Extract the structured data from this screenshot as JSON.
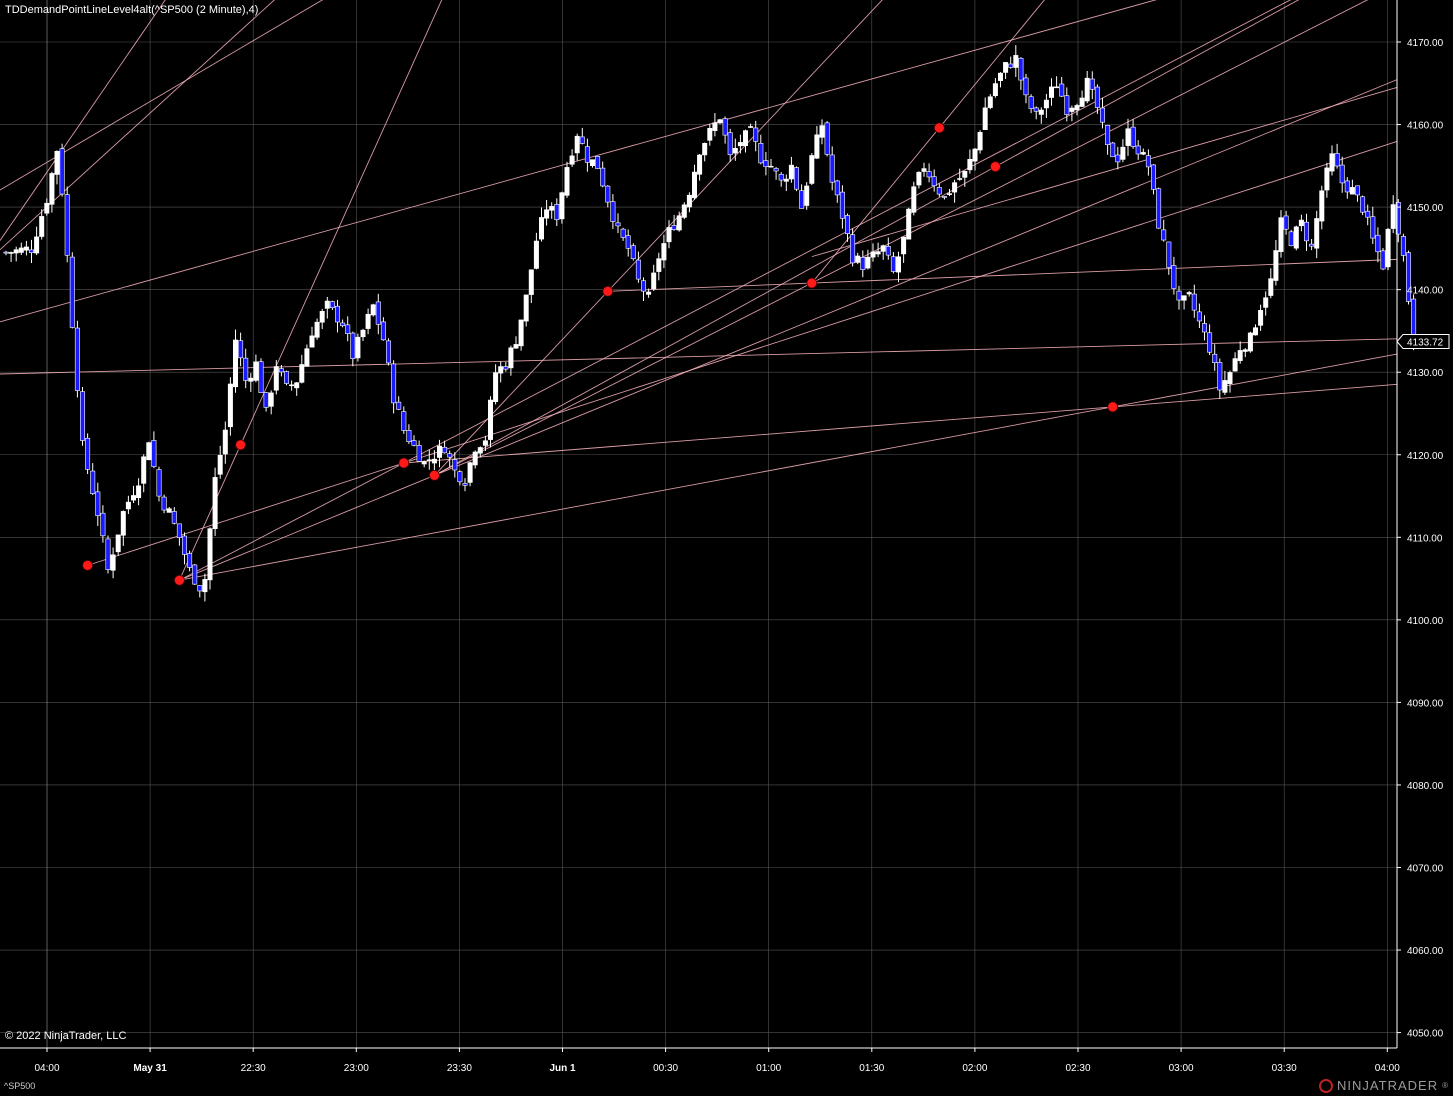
{
  "window": {
    "title": "TDDemandPointLineLevel4alt(^SP500 (2 Minute),4)",
    "copyright": "© 2022 NinjaTrader, LLC",
    "symbol": "^SP500",
    "brand": "NINJATRADER",
    "brand_mark": "®"
  },
  "colors": {
    "background": "#000000",
    "grid": "#555555",
    "candle_up": "#ffffff",
    "candle_down": "#1a1aff",
    "wick": "#ffffff",
    "trendline": "#ffb6c1",
    "demand_point": "#ff1a1a",
    "price_marker": "#ffffff"
  },
  "chart_data": {
    "type": "candlestick",
    "title": "TDDemandPointLineLevel4alt(^SP500 (2 Minute),4)",
    "ylim": [
      4047,
      4175
    ],
    "y_ticks": [
      "4050.00",
      "4060.00",
      "4070.00",
      "4080.00",
      "4090.00",
      "4100.00",
      "4110.00",
      "4120.00",
      "4130.00",
      "4140.00",
      "4150.00",
      "4160.00",
      "4170.00"
    ],
    "y_tick_values": [
      4050,
      4060,
      4070,
      4080,
      4090,
      4100,
      4110,
      4120,
      4130,
      4140,
      4150,
      4160,
      4170
    ],
    "x_ticks": [
      "04:00",
      "May 31",
      "22:30",
      "23:00",
      "23:30",
      "Jun 1",
      "00:30",
      "01:00",
      "01:30",
      "02:00",
      "02:30",
      "03:00",
      "03:30",
      "04:00"
    ],
    "bold_ticks": [
      "May 31",
      "Jun 1"
    ],
    "last_price": "4133.72",
    "last_price_value": 4133.72,
    "bar_count": 270,
    "close_path": [
      [
        0,
        4144.5
      ],
      [
        5,
        4145
      ],
      [
        8,
        4151
      ],
      [
        10,
        4157
      ],
      [
        11,
        4152
      ],
      [
        13,
        4136
      ],
      [
        15,
        4121
      ],
      [
        18,
        4113
      ],
      [
        20,
        4106
      ],
      [
        23,
        4113
      ],
      [
        26,
        4117
      ],
      [
        28,
        4122
      ],
      [
        30,
        4115
      ],
      [
        32,
        4113
      ],
      [
        34,
        4110
      ],
      [
        36,
        4106
      ],
      [
        38,
        4104
      ],
      [
        39,
        4105
      ],
      [
        41,
        4117
      ],
      [
        43,
        4123
      ],
      [
        45,
        4134
      ],
      [
        47,
        4129
      ],
      [
        49,
        4131
      ],
      [
        51,
        4125
      ],
      [
        53,
        4131
      ],
      [
        55,
        4128
      ],
      [
        57,
        4129
      ],
      [
        60,
        4135
      ],
      [
        63,
        4138
      ],
      [
        66,
        4136
      ],
      [
        68,
        4132
      ],
      [
        70,
        4135
      ],
      [
        72,
        4138
      ],
      [
        74,
        4134
      ],
      [
        76,
        4127
      ],
      [
        78,
        4123
      ],
      [
        80,
        4121
      ],
      [
        82,
        4119
      ],
      [
        84,
        4120
      ],
      [
        86,
        4121
      ],
      [
        88,
        4118
      ],
      [
        90,
        4117
      ],
      [
        92,
        4121
      ],
      [
        94,
        4122
      ],
      [
        96,
        4130
      ],
      [
        98,
        4131
      ],
      [
        100,
        4134
      ],
      [
        102,
        4139
      ],
      [
        104,
        4146
      ],
      [
        106,
        4150
      ],
      [
        108,
        4149
      ],
      [
        110,
        4155
      ],
      [
        112,
        4159
      ],
      [
        114,
        4156
      ],
      [
        116,
        4155
      ],
      [
        118,
        4151
      ],
      [
        120,
        4147
      ],
      [
        122,
        4145
      ],
      [
        124,
        4141
      ],
      [
        126,
        4139
      ],
      [
        128,
        4144
      ],
      [
        130,
        4147
      ],
      [
        132,
        4149
      ],
      [
        134,
        4152
      ],
      [
        136,
        4157
      ],
      [
        138,
        4159
      ],
      [
        140,
        4161
      ],
      [
        142,
        4156
      ],
      [
        144,
        4158
      ],
      [
        146,
        4159
      ],
      [
        148,
        4156
      ],
      [
        150,
        4155
      ],
      [
        152,
        4153
      ],
      [
        154,
        4155
      ],
      [
        156,
        4150
      ],
      [
        158,
        4156
      ],
      [
        160,
        4160
      ],
      [
        162,
        4153
      ],
      [
        164,
        4149
      ],
      [
        166,
        4144
      ],
      [
        168,
        4143
      ],
      [
        170,
        4144
      ],
      [
        172,
        4145
      ],
      [
        174,
        4142
      ],
      [
        176,
        4146
      ],
      [
        178,
        4152
      ],
      [
        180,
        4155
      ],
      [
        182,
        4153
      ],
      [
        184,
        4151
      ],
      [
        186,
        4153
      ],
      [
        188,
        4154
      ],
      [
        190,
        4157
      ],
      [
        192,
        4162
      ],
      [
        194,
        4165
      ],
      [
        196,
        4167
      ],
      [
        198,
        4168
      ],
      [
        200,
        4163
      ],
      [
        202,
        4161
      ],
      [
        204,
        4163
      ],
      [
        206,
        4165
      ],
      [
        208,
        4162
      ],
      [
        210,
        4163
      ],
      [
        212,
        4165
      ],
      [
        214,
        4162
      ],
      [
        216,
        4157
      ],
      [
        218,
        4156
      ],
      [
        220,
        4159
      ],
      [
        222,
        4157
      ],
      [
        224,
        4155
      ],
      [
        226,
        4148
      ],
      [
        228,
        4143
      ],
      [
        230,
        4138
      ],
      [
        232,
        4139
      ],
      [
        234,
        4136
      ],
      [
        236,
        4133
      ],
      [
        238,
        4128
      ],
      [
        240,
        4130
      ],
      [
        242,
        4133
      ],
      [
        244,
        4134
      ],
      [
        246,
        4138
      ],
      [
        248,
        4141
      ],
      [
        250,
        4148
      ],
      [
        252,
        4146
      ],
      [
        254,
        4148
      ],
      [
        256,
        4145
      ],
      [
        258,
        4152
      ],
      [
        260,
        4156
      ],
      [
        262,
        4153
      ],
      [
        264,
        4152
      ],
      [
        266,
        4150
      ],
      [
        268,
        4146
      ],
      [
        270,
        4143
      ],
      [
        272,
        4151
      ],
      [
        274,
        4144
      ],
      [
        276,
        4133.72
      ]
    ],
    "demand_points": [
      {
        "bar": 16,
        "price": 4106.6
      },
      {
        "bar": 34,
        "price": 4104.8
      },
      {
        "bar": 46,
        "price": 4121.2
      },
      {
        "bar": 78,
        "price": 4119.0
      },
      {
        "bar": 84,
        "price": 4117.5
      },
      {
        "bar": 118,
        "price": 4139.8
      },
      {
        "bar": 158,
        "price": 4140.8
      },
      {
        "bar": 183,
        "price": 4159.6
      },
      {
        "bar": 194,
        "price": 4154.9
      },
      {
        "bar": 217,
        "price": 4125.8
      }
    ],
    "trend_lines": [
      {
        "from": [
          34,
          4104.8
        ],
        "to": [
          78,
          4119.0
        ]
      },
      {
        "from": [
          34,
          4104.8
        ],
        "to": [
          84,
          4117.5
        ]
      },
      {
        "from": [
          34,
          4104.8
        ],
        "to": [
          46,
          4121.2
        ]
      },
      {
        "from": [
          34,
          4104.8
        ],
        "to": [
          217,
          4125.8
        ]
      },
      {
        "from": [
          16,
          4106.6
        ],
        "to": [
          78,
          4119.0
        ]
      },
      {
        "from": [
          84,
          4117.5
        ],
        "to": [
          118,
          4139.8
        ]
      },
      {
        "from": [
          84,
          4117.5
        ],
        "to": [
          158,
          4140.8
        ]
      },
      {
        "from": [
          84,
          4117.5
        ],
        "to": [
          194,
          4154.9
        ]
      },
      {
        "from": [
          118,
          4139.8
        ],
        "to": [
          158,
          4140.8
        ]
      },
      {
        "from": [
          158,
          4140.8
        ],
        "to": [
          183,
          4159.6
        ]
      },
      {
        "from": [
          78,
          4119.0
        ],
        "to": [
          217,
          4125.8
        ]
      },
      {
        "from": [
          0,
          4129.8
        ],
        "to": [
          252,
          4133.72
        ]
      },
      {
        "from": [
          0,
          4136.3
        ],
        "to": [
          140,
          4160.4
        ]
      },
      {
        "from": [
          0,
          4152.5
        ],
        "to": [
          70,
          4178
        ]
      },
      {
        "from": [
          0,
          4145.5
        ],
        "to": [
          40,
          4168
        ]
      },
      {
        "from": [
          0,
          4147.0
        ],
        "to": [
          30,
          4174
        ]
      },
      {
        "from": [
          158,
          4144.0
        ],
        "to": [
          270,
          4164.0
        ]
      }
    ]
  }
}
